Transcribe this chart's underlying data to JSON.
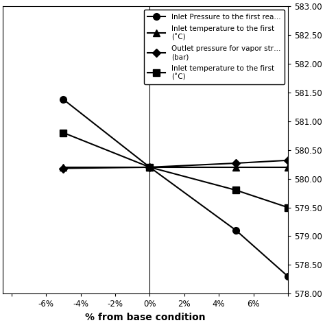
{
  "x_values": [
    -8,
    -5,
    0,
    5,
    8
  ],
  "series": [
    {
      "label": "Inlet Pressure to the first rea…",
      "marker": "o",
      "y_values": [
        null,
        581.38,
        580.2,
        579.1,
        578.3
      ]
    },
    {
      "label": "Inlet temperature to the first\n(˚C)",
      "marker": "^",
      "y_values": [
        null,
        580.2,
        580.2,
        580.2,
        580.2
      ]
    },
    {
      "label": "Outlet pressure for vapor str…\n(bar)",
      "marker": "D",
      "y_values": [
        null,
        580.18,
        580.2,
        580.27,
        580.32
      ]
    },
    {
      "label": "Inlet temperature to the first \n(˚C)",
      "marker": "s",
      "y_values": [
        null,
        580.8,
        580.2,
        579.8,
        579.5
      ]
    }
  ],
  "xlabel": "% from base condition",
  "ylim": [
    578.0,
    583.0
  ],
  "yticks": [
    578.0,
    578.5,
    579.0,
    579.5,
    580.0,
    580.5,
    581.0,
    581.5,
    582.0,
    582.5,
    583.0
  ],
  "xtick_labels": [
    "",
    "-6%",
    "-4%",
    "-2%",
    "0%",
    "2%",
    "4%",
    "6%",
    ""
  ],
  "xtick_values": [
    -8,
    -6,
    -4,
    -2,
    0,
    2,
    4,
    6,
    8
  ],
  "xlim": [
    -8.5,
    7.5
  ],
  "line_color": "#000000",
  "background_color": "#ffffff",
  "legend_fontsize": 7.5,
  "tick_fontsize": 8.5,
  "xlabel_fontsize": 10
}
